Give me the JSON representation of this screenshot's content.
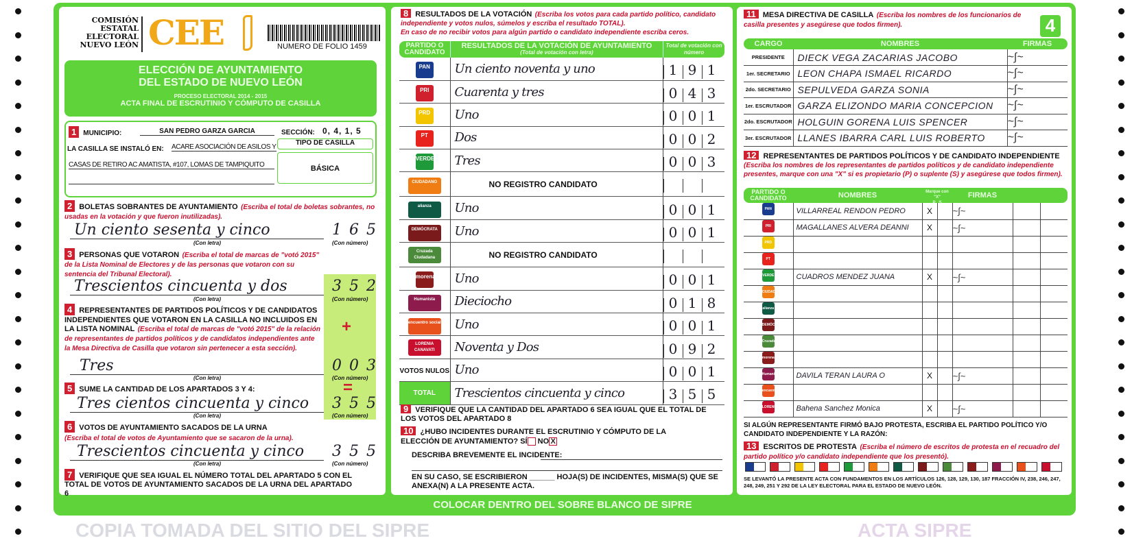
{
  "header": {
    "org_lines": [
      "COMISIÓN",
      "ESTATAL",
      "ELECTORAL",
      "NUEVO LEÓN"
    ],
    "logo_text": "CEE",
    "folio": "NUMERO DE FOLIO 1459",
    "page_number": "4",
    "title1": "ELECCIÓN DE AYUNTAMIENTO",
    "title2": "DEL ESTADO DE NUEVO LEÓN",
    "subtitle1": "PROCESO ELECTORAL 2014 - 2015",
    "subtitle2": "ACTA FINAL DE ESCRUTINIO Y CÓMPUTO DE CASILLA"
  },
  "s1": {
    "num": "1",
    "municipio_label": "MUNICIPIO:",
    "municipio": "SAN PEDRO GARZA GARCIA",
    "seccion_label": "SECCIÓN:",
    "seccion": "0, 4, 1, 5",
    "instalo_label": "LA CASILLA SE INSTALÓ EN:",
    "instalo1": "ACARE ASOCIACIÓN DE ASILOS Y",
    "instalo2": "CASAS DE RETIRO AC AMATISTA, #107, LOMAS DE TAMPIQUITO",
    "tipo_label": "TIPO DE CASILLA",
    "tipo": "BÁSICA"
  },
  "labels": {
    "con_letra": "(Con letra)",
    "con_numero": "(Con número)",
    "plus": "+",
    "equals": "="
  },
  "s2": {
    "num": "2",
    "title": "BOLETAS SOBRANTES DE AYUNTAMIENTO",
    "note": "(Escriba el total de boletas sobrantes, no usadas en la votación y que fueron inutilizadas).",
    "letra": "Un ciento sesenta y cinco",
    "numero": "1 6 5"
  },
  "s3": {
    "num": "3",
    "title": "PERSONAS QUE VOTARON",
    "note": "(Escriba el total de marcas de \"votó 2015\" de la Lista Nominal de Electores y de las personas que votaron con su sentencia del Tribunal Electoral).",
    "letra": "Trescientos cincuenta y dos",
    "numero": "3 5 2"
  },
  "s4": {
    "num": "4",
    "title": "REPRESENTANTES DE PARTIDOS POLÍTICOS Y DE CANDIDATOS INDEPENDIENTES QUE VOTARON EN LA CASILLA NO INCLUIDOS EN LA LISTA NOMINAL",
    "note": "(Escriba el total de marcas de \"votó 2015\" de la relación de representantes de partidos políticos y de candidatos independientes ante la Mesa Directiva de Casilla que votaron sin pertenecer a esta sección).",
    "letra": "Tres",
    "numero": "0 0 3"
  },
  "s5": {
    "num": "5",
    "title": "SUME LA CANTIDAD DE LOS APARTADOS 3 Y 4:",
    "letra": "Tres cientos cincuenta y cinco",
    "numero": "3 5 5"
  },
  "s6": {
    "num": "6",
    "title": "VOTOS DE AYUNTAMIENTO SACADOS DE LA URNA",
    "note": "(Escriba el total de votos de Ayuntamiento que se sacaron de la urna).",
    "letra": "Trescientos cincuenta y cinco",
    "numero": "3 5 5"
  },
  "s7": {
    "num": "7",
    "text": "VERIFIQUE QUE SEA IGUAL EL NÚMERO TOTAL DEL APARTADO 5 CON EL TOTAL DE VOTOS DE AYUNTAMIENTO SACADOS DE LA URNA DEL APARTADO 6"
  },
  "s8": {
    "num": "8",
    "title": "RESULTADOS DE LA VOTACIÓN",
    "note1": "(Escriba los votos para cada partido político, candidato independiente y votos nulos, súmelos y escriba el resultado TOTAL).",
    "note2": "En caso de no recibir votos para algún partido o candidato independiente escriba ceros.",
    "col1": "PARTIDO O CANDIDATO",
    "col2": "RESULTADOS DE LA VOTACIÓN DE AYUNTAMIENTO",
    "col2sub": "(Total de votación con letra)",
    "col3": "Total de votación con número",
    "rows": [
      {
        "party": "PAN",
        "color": "#1a3c8f",
        "letra": "Un ciento noventa y uno",
        "numero": [
          "1",
          "9",
          "1"
        ]
      },
      {
        "party": "PRI",
        "color": "#d0202e",
        "letra": "Cuarenta y tres",
        "numero": [
          "0",
          "4",
          "3"
        ]
      },
      {
        "party": "PRD",
        "color": "#f2c500",
        "letra": "Uno",
        "numero": [
          "0",
          "0",
          "1"
        ]
      },
      {
        "party": "PT",
        "color": "#e8231d",
        "letra": "Dos",
        "numero": [
          "0",
          "0",
          "2"
        ]
      },
      {
        "party": "VERDE",
        "color": "#1f9a3a",
        "letra": "Tres",
        "numero": [
          "0",
          "0",
          "3"
        ]
      },
      {
        "party": "CIUDADANO",
        "color": "#f07d13",
        "letra": "NO REGISTRO CANDIDATO",
        "numero": [
          "",
          "",
          ""
        ]
      },
      {
        "party": "alianza",
        "color": "#0f5a45",
        "letra": "Uno",
        "numero": [
          "0",
          "0",
          "1"
        ]
      },
      {
        "party": "DEMÓCRATA",
        "color": "#7a1a1a",
        "letra": "Uno",
        "numero": [
          "0",
          "0",
          "1"
        ]
      },
      {
        "party": "Cruzada Ciudadana",
        "color": "#4b8a3a",
        "letra": "NO REGISTRO CANDIDATO",
        "numero": [
          "",
          "",
          ""
        ]
      },
      {
        "party": "morena",
        "color": "#8a1c1c",
        "letra": "Uno",
        "numero": [
          "0",
          "0",
          "1"
        ]
      },
      {
        "party": "Humanista",
        "color": "#8d1b4b",
        "letra": "Dieciocho",
        "numero": [
          "0",
          "1",
          "8"
        ]
      },
      {
        "party": "encuentro social",
        "color": "#e8501c",
        "letra": "Uno",
        "numero": [
          "0",
          "0",
          "1"
        ]
      },
      {
        "party": "LORENIA CANAVATI",
        "color": "#c8102e",
        "letra": "Noventa y Dos",
        "numero": [
          "0",
          "9",
          "2"
        ]
      },
      {
        "party": "VOTOS NULOS",
        "color": "",
        "letra": "Uno",
        "numero": [
          "0",
          "0",
          "1"
        ]
      },
      {
        "party": "TOTAL",
        "color": "#5fd33a",
        "letra": "Trescientos cincuenta y cinco",
        "numero": [
          "3",
          "5",
          "5"
        ]
      }
    ]
  },
  "s9": {
    "num": "9",
    "text": "VERIFIQUE QUE LA CANTIDAD DEL APARTADO 6 SEA IGUAL QUE EL TOTAL DE LOS VOTOS DEL APARTADO 8"
  },
  "s10": {
    "num": "10",
    "q": "¿HUBO INCIDENTES DURANTE EL ESCRUTINIO Y CÓMPUTO DE LA ELECCIÓN DE AYUNTAMIENTO?",
    "si": "SÍ",
    "no": "NO",
    "no_mark": "X",
    "describe": "DESCRIBA BREVEMENTE EL INCIDENTE:",
    "hojas": "EN SU CASO, SE ESCRIBIERON ______ HOJA(S) DE INCIDENTES, MISMA(S) QUE SE ANEXA(N) A LA PRESENTE ACTA."
  },
  "footer": "COLOCAR DENTRO DEL SOBRE BLANCO DE SIPRE",
  "s11": {
    "num": "11",
    "title": "MESA DIRECTIVA DE CASILLA",
    "note": "(Escriba los nombres de los funcionarios de casilla presentes y asegúrese que todos firmen).",
    "col1": "CARGO",
    "col2": "NOMBRES",
    "col3": "FIRMAS",
    "rows": [
      {
        "cargo": "PRESIDENTE",
        "nombre": "DIECK VEGA ZACARIAS JACOBO"
      },
      {
        "cargo": "1er. SECRETARIO",
        "nombre": "LEON CHAPA ISMAEL RICARDO"
      },
      {
        "cargo": "2do. SECRETARIO",
        "nombre": "SEPULVEDA GARZA SONIA"
      },
      {
        "cargo": "1er. ESCRUTADOR",
        "nombre": "GARZA ELIZONDO MARIA CONCEPCION"
      },
      {
        "cargo": "2do. ESCRUTADOR",
        "nombre": "HOLGUIN GORENA LUIS SPENCER"
      },
      {
        "cargo": "3er. ESCRUTADOR",
        "nombre": "LLANES IBARRA CARL LUIS ROBERTO"
      }
    ]
  },
  "s12": {
    "num": "12",
    "title": "REPRESENTANTES DE PARTIDOS POLÍTICOS Y DE CANDIDATO INDEPENDIENTE",
    "note": "(Escriba los nombres de los representantes de partidos políticos y de candidato independiente presentes, marque con una \"X\" si es propietario (P) o suplente (S) y asegúrese que todos firmen).",
    "col1": "PARTIDO O CANDIDATO",
    "col2": "NOMBRES",
    "col3": "Marque con \"X\"",
    "p": "P",
    "s": "S",
    "col4": "FIRMAS",
    "rows": [
      {
        "party": "PAN",
        "color": "#1a3c8f",
        "nombre": "VILLARREAL RENDON PEDRO",
        "p": "X"
      },
      {
        "party": "PRI",
        "color": "#d0202e",
        "nombre": "MAGALLANES ALVERA DEANNI",
        "p": "X"
      },
      {
        "party": "PRD",
        "color": "#f2c500",
        "nombre": "",
        "p": ""
      },
      {
        "party": "PT",
        "color": "#e8231d",
        "nombre": "",
        "p": ""
      },
      {
        "party": "VERDE",
        "color": "#1f9a3a",
        "nombre": "CUADROS MENDEZ JUANA",
        "p": "X"
      },
      {
        "party": "CIUDADANO",
        "color": "#f07d13",
        "nombre": "",
        "p": ""
      },
      {
        "party": "alianza",
        "color": "#0f5a45",
        "nombre": "",
        "p": ""
      },
      {
        "party": "DEMÓCRATA",
        "color": "#7a1a1a",
        "nombre": "",
        "p": ""
      },
      {
        "party": "Cruzada",
        "color": "#4b8a3a",
        "nombre": "",
        "p": ""
      },
      {
        "party": "morena",
        "color": "#8a1c1c",
        "nombre": "",
        "p": ""
      },
      {
        "party": "Humanista",
        "color": "#8d1b4b",
        "nombre": "DAVILA TERAN LAURA O",
        "p": "X"
      },
      {
        "party": "encuentro",
        "color": "#e8501c",
        "nombre": "",
        "p": ""
      },
      {
        "party": "LORENIA CANAVATI",
        "color": "#c8102e",
        "nombre": "Bahena Sanchez Monica",
        "p": "X"
      }
    ],
    "protesta": "SI ALGÚN REPRESENTANTE FIRMÓ BAJO PROTESTA, ESCRIBA EL PARTIDO POLÍTICO Y/O CANDIDATO INDEPENDIENTE Y LA RAZÓN:"
  },
  "s13": {
    "num": "13",
    "title": "ESCRITOS DE PROTESTA",
    "note": "(Escriba el número de escritos de protesta en el recuadro del partido político y/o candidato independiente que los presentó).",
    "legal": "SE LEVANTÓ LA PRESENTE ACTA CON FUNDAMENTOS EN LOS ARTÍCULOS 126, 128, 129, 130, 187 FRACCIÓN IV, 238, 246, 247, 248, 249, 251 Y 292 DE LA LEY ELECTORAL PARA EL ESTADO DE NUEVO LEÓN."
  },
  "watermarks": {
    "acta": "ACTA SIPRE",
    "copia": "COPIA TOMADA DEL SITIO DEL SIPRE"
  }
}
